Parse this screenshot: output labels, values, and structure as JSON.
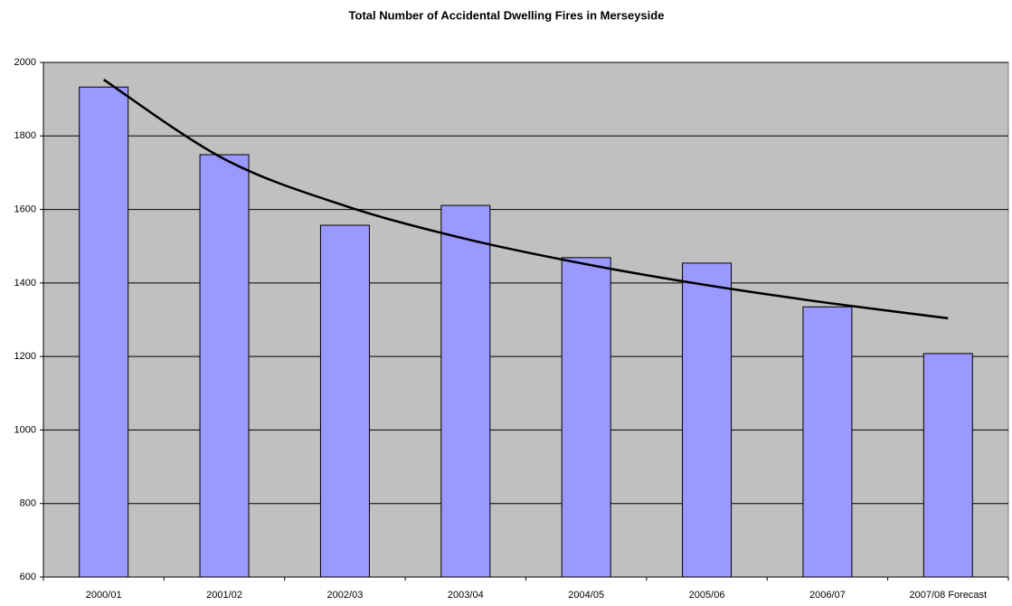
{
  "chart_data": {
    "type": "bar",
    "title": "Total Number of Accidental Dwelling Fires in Merseyside",
    "categories": [
      "2000/01",
      "2001/02",
      "2002/03",
      "2003/04",
      "2004/05",
      "2005/06",
      "2006/07",
      "2007/08 Forecast"
    ],
    "values": [
      1933,
      1749,
      1557,
      1611,
      1469,
      1454,
      1335,
      1208
    ],
    "color": "#9999ff",
    "trendline": {
      "values": [
        1953,
        1737,
        1610,
        1520,
        1451,
        1394,
        1346,
        1304
      ],
      "color": "#000000"
    },
    "ylim": [
      600,
      2000
    ],
    "yticks": [
      600,
      800,
      1000,
      1200,
      1400,
      1600,
      1800,
      2000
    ],
    "grid": true
  }
}
